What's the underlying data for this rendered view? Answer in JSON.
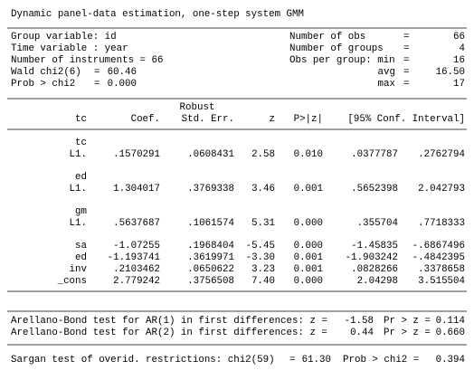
{
  "header": {
    "title": "Dynamic panel-data estimation, one-step system GMM"
  },
  "summary": {
    "left": [
      {
        "label": "Group variable:",
        "value": "id"
      },
      {
        "label": "Time variable :",
        "value": "year"
      },
      {
        "label": "Number of instruments =",
        "value": "66"
      },
      {
        "label": "Wald chi2(6)",
        "eq": "=",
        "value": "60.46"
      },
      {
        "label": "Prob > chi2",
        "eq": "=",
        "value": "0.000"
      }
    ],
    "right": [
      {
        "label": "Number of obs",
        "eq": "=",
        "value": "66"
      },
      {
        "label": "Number of groups",
        "eq": "=",
        "value": "4"
      },
      {
        "label": "Obs per group: min",
        "eq": "=",
        "value": "16"
      },
      {
        "label": "avg",
        "eq": "=",
        "value": "16.50"
      },
      {
        "label": "max",
        "eq": "=",
        "value": "17"
      }
    ]
  },
  "table": {
    "robust": "Robust",
    "columns": [
      "tc",
      "Coef.",
      "Std. Err.",
      "z",
      "P>|z|",
      "[95% Conf. Interval]"
    ],
    "rows": [
      {
        "group": "tc",
        "name": "L1.",
        "cells": [
          ".1570291",
          ".0608431",
          "2.58",
          "0.010",
          ".0377787",
          ".2762794"
        ]
      },
      {
        "group": "ed",
        "name": "L1.",
        "cells": [
          "1.304017",
          ".3769338",
          "3.46",
          "0.001",
          ".5652398",
          "2.042793"
        ]
      },
      {
        "group": "gm",
        "name": "L1.",
        "cells": [
          ".5637687",
          ".1061574",
          "5.31",
          "0.000",
          ".355704",
          ".7718333"
        ]
      },
      {
        "name": "sa",
        "cells": [
          "-1.07255",
          ".1968404",
          "-5.45",
          "0.000",
          "-1.45835",
          "-.6867496"
        ]
      },
      {
        "name": "ed",
        "cells": [
          "-1.193741",
          ".3619971",
          "-3.30",
          "0.001",
          "-1.903242",
          "-.4842395"
        ]
      },
      {
        "name": "inv",
        "cells": [
          ".2103462",
          ".0650622",
          "3.23",
          "0.001",
          ".0828266",
          ".3378658"
        ]
      },
      {
        "name": "_cons",
        "cells": [
          "2.779242",
          ".3756508",
          "7.40",
          "0.000",
          "2.04298",
          "3.515504"
        ]
      }
    ]
  },
  "tests": {
    "ar": [
      {
        "label": "Arellano-Bond test for AR(1) in first differences: z =",
        "z": "-1.58",
        "p_label": "Pr > z =",
        "p": "0.114"
      },
      {
        "label": "Arellano-Bond test for AR(2) in first differences: z =",
        "z": "0.44",
        "p_label": "Pr > z =",
        "p": "0.660"
      }
    ],
    "sargan": {
      "label": "Sargan test of overid. restrictions: chi2(59)",
      "eq": "=",
      "stat": "61.30",
      "p_label": "Prob > chi2 =",
      "p": "0.394"
    }
  }
}
